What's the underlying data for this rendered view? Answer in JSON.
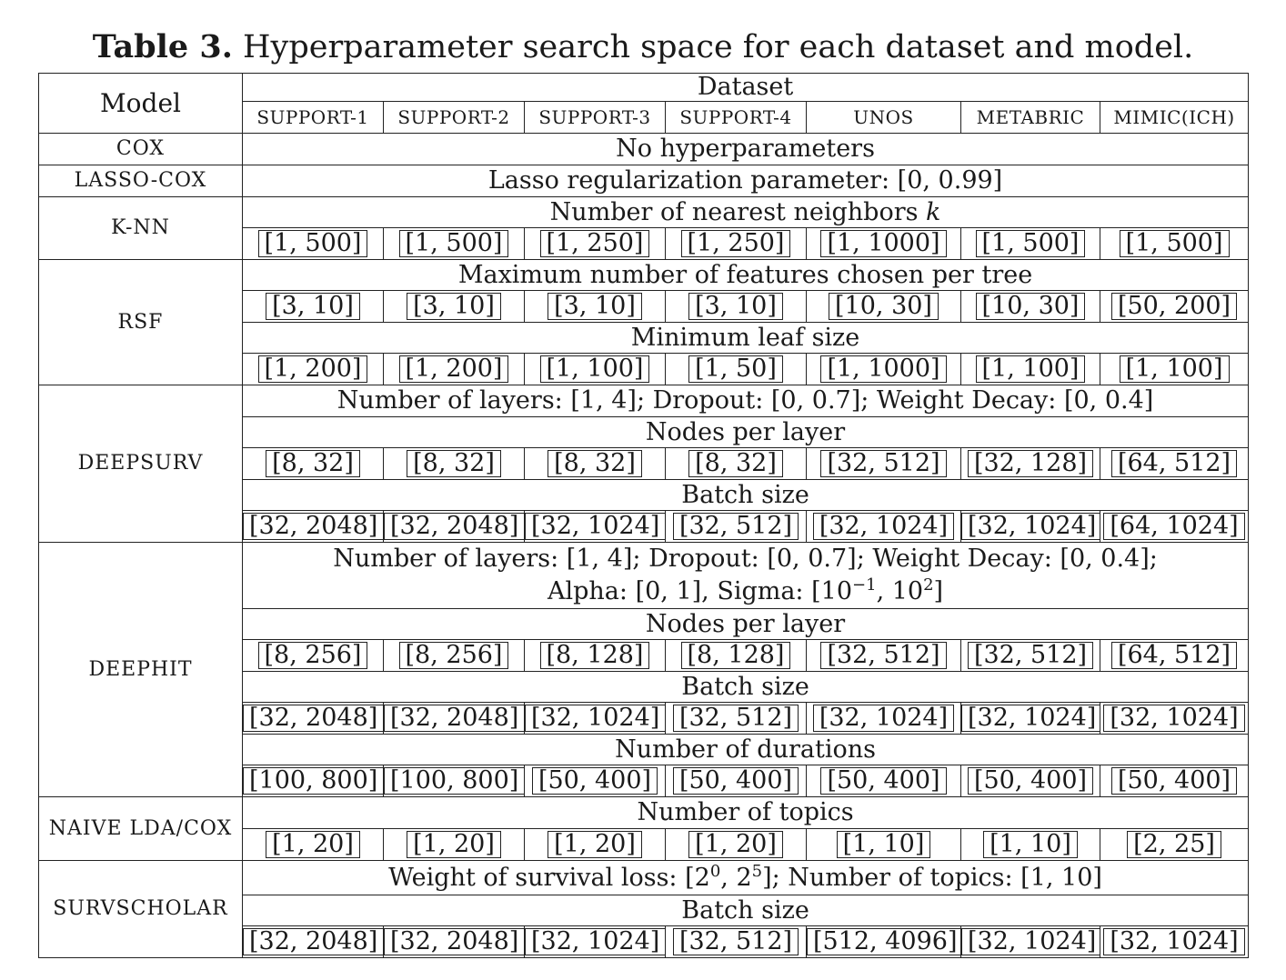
{
  "caption": {
    "label": "Table 3.",
    "text": "Hyperparameter search space for each dataset and model."
  },
  "header": {
    "model": "Model",
    "dataset": "Dataset",
    "datasets": [
      "SUPPORT-1",
      "SUPPORT-2",
      "SUPPORT-3",
      "SUPPORT-4",
      "UNOS",
      "METABRIC",
      "MIMIC(ICH)"
    ]
  },
  "models": {
    "cox": {
      "name": "COX",
      "text": "No hyperparameters"
    },
    "lasso": {
      "name": "LASSO-COX",
      "text": "Lasso regularization parameter: [0, 0.99]"
    },
    "knn": {
      "name": "K-NN",
      "label_text": "Number of nearest neighbors ",
      "label_var": "k",
      "values": [
        "[1, 500]",
        "[1, 500]",
        "[1, 250]",
        "[1, 250]",
        "[1, 1000]",
        "[1, 500]",
        "[1, 500]"
      ]
    },
    "rsf": {
      "name": "RSF",
      "features_label": "Maximum number of features chosen per tree",
      "features": [
        "[3, 10]",
        "[3, 10]",
        "[3, 10]",
        "[3, 10]",
        "[10, 30]",
        "[10, 30]",
        "[50, 200]"
      ],
      "leaf_label": "Minimum leaf size",
      "leaf": [
        "[1, 200]",
        "[1, 200]",
        "[1, 100]",
        "[1, 50]",
        "[1, 1000]",
        "[1, 100]",
        "[1, 100]"
      ]
    },
    "deepsurv": {
      "name": "DEEPSURV",
      "shared": "Number of layers: [1, 4]; Dropout: [0, 0.7]; Weight Decay: [0, 0.4]",
      "nodes_label": "Nodes per layer",
      "nodes": [
        "[8, 32]",
        "[8, 32]",
        "[8, 32]",
        "[8, 32]",
        "[32, 512]",
        "[32, 128]",
        "[64, 512]"
      ],
      "batch_label": "Batch size",
      "batch": [
        "[32, 2048]",
        "[32, 2048]",
        "[32, 1024]",
        "[32, 512]",
        "[32, 1024]",
        "[32, 1024]",
        "[64, 1024]"
      ]
    },
    "deephit": {
      "name": "DEEPHIT",
      "shared_line1": "Number of layers: [1, 4]; Dropout: [0, 0.7]; Weight Decay: [0, 0.4];",
      "shared_line2_prefix": "Alpha: [0, 1], Sigma: [10",
      "sigma_exp_low": "−1",
      "sigma_mid": ", 10",
      "sigma_exp_high": "2",
      "sigma_suffix": "]",
      "nodes_label": "Nodes per layer",
      "nodes": [
        "[8, 256]",
        "[8, 256]",
        "[8, 128]",
        "[8, 128]",
        "[32, 512]",
        "[32, 512]",
        "[64, 512]"
      ],
      "batch_label": "Batch size",
      "batch": [
        "[32, 2048]",
        "[32, 2048]",
        "[32, 1024]",
        "[32, 512]",
        "[32, 1024]",
        "[32, 1024]",
        "[32, 1024]"
      ],
      "durations_label": "Number of durations",
      "durations": [
        "[100, 800]",
        "[100, 800]",
        "[50, 400]",
        "[50, 400]",
        "[50, 400]",
        "[50, 400]",
        "[50, 400]"
      ]
    },
    "naive": {
      "name": "NAIVE LDA/COX",
      "topics_label": "Number of topics",
      "topics": [
        "[1, 20]",
        "[1, 20]",
        "[1, 20]",
        "[1, 20]",
        "[1, 10]",
        "[1, 10]",
        "[2, 25]"
      ]
    },
    "survscholar": {
      "name": "SURVSCHOLAR",
      "shared_prefix": "Weight of survival loss: [2",
      "exp_low": "0",
      "mid": ", 2",
      "exp_high": "5",
      "shared_suffix": "]; Number of topics: [1, 10]",
      "batch_label": "Batch size",
      "batch": [
        "[32, 2048]",
        "[32, 2048]",
        "[32, 1024]",
        "[32, 512]",
        "[512, 4096]",
        "[32, 1024]",
        "[32, 1024]"
      ]
    }
  }
}
